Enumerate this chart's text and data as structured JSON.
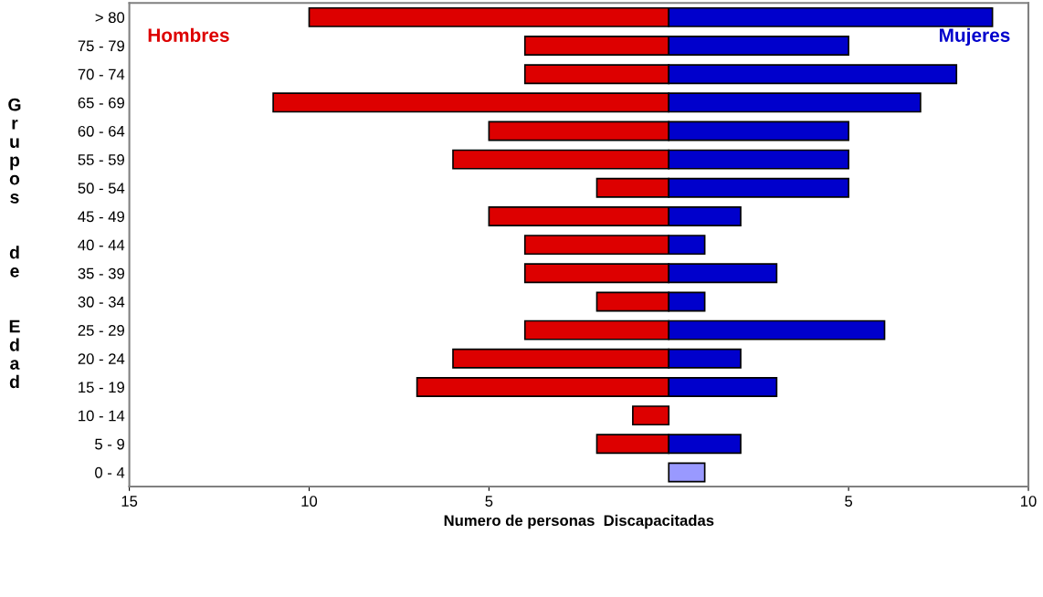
{
  "chart_data": {
    "type": "bar",
    "orientation": "horizontal",
    "stacked": true,
    "xlabel": "Numero de personas  Discapacitadas",
    "ylabel": "Grupos  de  Edad",
    "categories": [
      "> 80",
      "75 - 79",
      "70 - 74",
      "65 - 69",
      "60 - 64",
      "55 - 59",
      "50 - 54",
      "45 - 49",
      "40 - 44",
      "35 - 39",
      "30 - 34",
      "25 - 29",
      "20 - 24",
      "15 - 19",
      "10 - 14",
      "5 - 9",
      "0 - 4"
    ],
    "series": [
      {
        "name": "Hombres",
        "color": "#dd0000",
        "values": [
          -10,
          -4,
          -4,
          -11,
          -5,
          -6,
          -2,
          -5,
          -4,
          -4,
          -2,
          -4,
          -6,
          -7,
          -1,
          -2,
          null
        ]
      },
      {
        "name": "Mujeres",
        "color": "#0000cc",
        "colors": [
          "#0000cc",
          "#0000cc",
          "#0000cc",
          "#0000cc",
          "#0000cc",
          "#0000cc",
          "#0000cc",
          "#0000cc",
          "#0000cc",
          "#0000cc",
          "#0000cc",
          "#0000cc",
          "#0000cc",
          "#0000cc",
          "#0000cc",
          "#0000cc",
          "#9999ff"
        ],
        "values": [
          9,
          5,
          8,
          7,
          5,
          5,
          5,
          2,
          1,
          3,
          1,
          6,
          2,
          3,
          null,
          2,
          1
        ]
      }
    ],
    "xlim": [
      -15,
      10
    ],
    "xticks": [
      {
        "value": -15,
        "label": "15"
      },
      {
        "value": -10,
        "label": "10"
      },
      {
        "value": -5,
        "label": "5"
      },
      5,
      10
    ],
    "grid": false,
    "legend": false
  }
}
